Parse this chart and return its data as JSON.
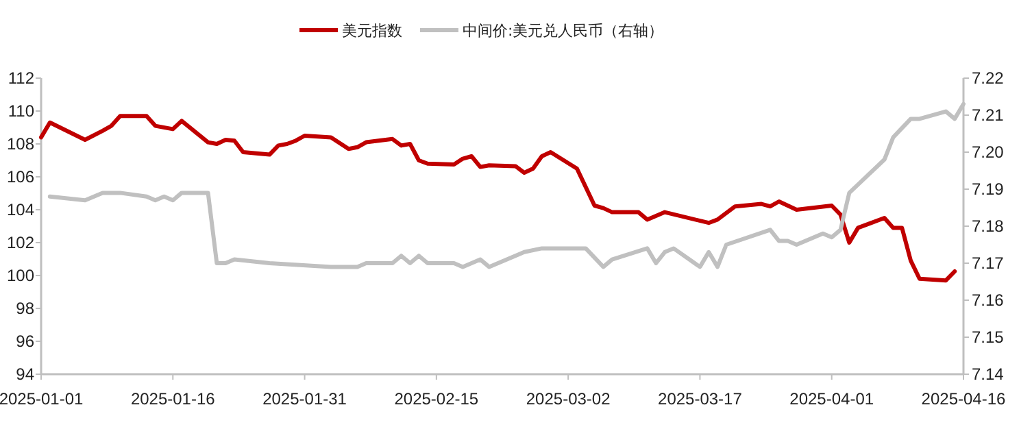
{
  "chart_data": {
    "type": "line",
    "legend": "top",
    "grid": false,
    "marker": "none",
    "line_style": "solid",
    "xlim": [
      "2025-01-01",
      "2025-04-16"
    ],
    "xticks": [
      "2025-01-01",
      "2025-01-16",
      "2025-01-31",
      "2025-02-15",
      "2025-03-02",
      "2025-03-17",
      "2025-04-01",
      "2025-04-16"
    ],
    "ylim": [
      94,
      112
    ],
    "yticks": [
      94,
      96,
      98,
      100,
      102,
      104,
      106,
      108,
      110,
      112
    ],
    "y2lim": [
      7.14,
      7.22
    ],
    "y2ticks": [
      {
        "value": 7.14,
        "label": "7.14"
      },
      {
        "value": 7.15,
        "label": "7.15"
      },
      {
        "value": 7.16,
        "label": "7.16"
      },
      {
        "value": 7.17,
        "label": "7.17"
      },
      {
        "value": 7.18,
        "label": "7.18"
      },
      {
        "value": 7.19,
        "label": "7.19"
      },
      {
        "value": 7.2,
        "label": "7.20"
      },
      {
        "value": 7.21,
        "label": "7.21"
      },
      {
        "value": 7.22,
        "label": "7.22"
      }
    ],
    "series": [
      {
        "name": "美元指数",
        "color": "#c00000",
        "x": [
          "2025-01-01",
          "2025-01-02",
          "2025-01-06",
          "2025-01-08",
          "2025-01-09",
          "2025-01-10",
          "2025-01-13",
          "2025-01-14",
          "2025-01-16",
          "2025-01-17",
          "2025-01-20",
          "2025-01-21",
          "2025-01-22",
          "2025-01-23",
          "2025-01-24",
          "2025-01-27",
          "2025-01-28",
          "2025-01-29",
          "2025-01-30",
          "2025-01-31",
          "2025-02-03",
          "2025-02-05",
          "2025-02-06",
          "2025-02-07",
          "2025-02-10",
          "2025-02-11",
          "2025-02-12",
          "2025-02-13",
          "2025-02-14",
          "2025-02-17",
          "2025-02-18",
          "2025-02-19",
          "2025-02-20",
          "2025-02-21",
          "2025-02-24",
          "2025-02-25",
          "2025-02-26",
          "2025-02-27",
          "2025-02-28",
          "2025-03-03",
          "2025-03-05",
          "2025-03-06",
          "2025-03-07",
          "2025-03-10",
          "2025-03-11",
          "2025-03-13",
          "2025-03-18",
          "2025-03-19",
          "2025-03-21",
          "2025-03-24",
          "2025-03-25",
          "2025-03-26",
          "2025-03-28",
          "2025-04-01",
          "2025-04-02",
          "2025-04-03",
          "2025-04-04",
          "2025-04-07",
          "2025-04-08",
          "2025-04-09",
          "2025-04-10",
          "2025-04-11",
          "2025-04-14",
          "2025-04-15"
        ],
        "values": [
          108.4,
          109.3,
          108.25,
          108.8,
          109.1,
          109.7,
          109.7,
          109.1,
          108.9,
          109.4,
          108.1,
          108.0,
          108.25,
          108.2,
          107.5,
          107.35,
          107.9,
          108.0,
          108.2,
          108.5,
          108.4,
          107.7,
          107.8,
          108.1,
          108.3,
          107.9,
          108.0,
          107.0,
          106.8,
          106.75,
          107.1,
          107.25,
          106.6,
          106.7,
          106.65,
          106.25,
          106.5,
          107.25,
          107.5,
          106.5,
          104.25,
          104.1,
          103.85,
          103.85,
          103.4,
          103.85,
          103.2,
          103.4,
          104.2,
          104.35,
          104.2,
          104.5,
          104.0,
          104.25,
          103.7,
          102.0,
          102.9,
          103.5,
          102.9,
          102.9,
          100.9,
          99.8,
          99.7,
          100.25
        ]
      },
      {
        "name": "中间价:美元兑人民币（右轴）",
        "color": "#c0c0c0",
        "axis": "y2",
        "x": [
          "2025-01-02",
          "2025-01-06",
          "2025-01-08",
          "2025-01-10",
          "2025-01-13",
          "2025-01-14",
          "2025-01-15",
          "2025-01-16",
          "2025-01-17",
          "2025-01-20",
          "2025-01-21",
          "2025-01-22",
          "2025-01-23",
          "2025-01-27",
          "2025-02-03",
          "2025-02-06",
          "2025-02-07",
          "2025-02-10",
          "2025-02-11",
          "2025-02-12",
          "2025-02-13",
          "2025-02-14",
          "2025-02-17",
          "2025-02-18",
          "2025-02-20",
          "2025-02-21",
          "2025-02-25",
          "2025-02-27",
          "2025-02-28",
          "2025-03-03",
          "2025-03-04",
          "2025-03-06",
          "2025-03-07",
          "2025-03-11",
          "2025-03-12",
          "2025-03-13",
          "2025-03-14",
          "2025-03-17",
          "2025-03-18",
          "2025-03-19",
          "2025-03-20",
          "2025-03-25",
          "2025-03-26",
          "2025-03-27",
          "2025-03-28",
          "2025-03-31",
          "2025-04-01",
          "2025-04-02",
          "2025-04-03",
          "2025-04-07",
          "2025-04-08",
          "2025-04-10",
          "2025-04-11",
          "2025-04-14",
          "2025-04-15",
          "2025-04-16"
        ],
        "values": [
          7.188,
          7.187,
          7.189,
          7.189,
          7.188,
          7.187,
          7.188,
          7.187,
          7.189,
          7.189,
          7.17,
          7.17,
          7.171,
          7.17,
          7.169,
          7.169,
          7.17,
          7.17,
          7.172,
          7.17,
          7.172,
          7.17,
          7.17,
          7.169,
          7.171,
          7.169,
          7.173,
          7.174,
          7.174,
          7.174,
          7.174,
          7.169,
          7.171,
          7.174,
          7.17,
          7.173,
          7.174,
          7.169,
          7.173,
          7.169,
          7.175,
          7.179,
          7.176,
          7.176,
          7.175,
          7.178,
          7.177,
          7.179,
          7.189,
          7.198,
          7.204,
          7.209,
          7.209,
          7.211,
          7.209,
          7.213
        ]
      }
    ]
  }
}
